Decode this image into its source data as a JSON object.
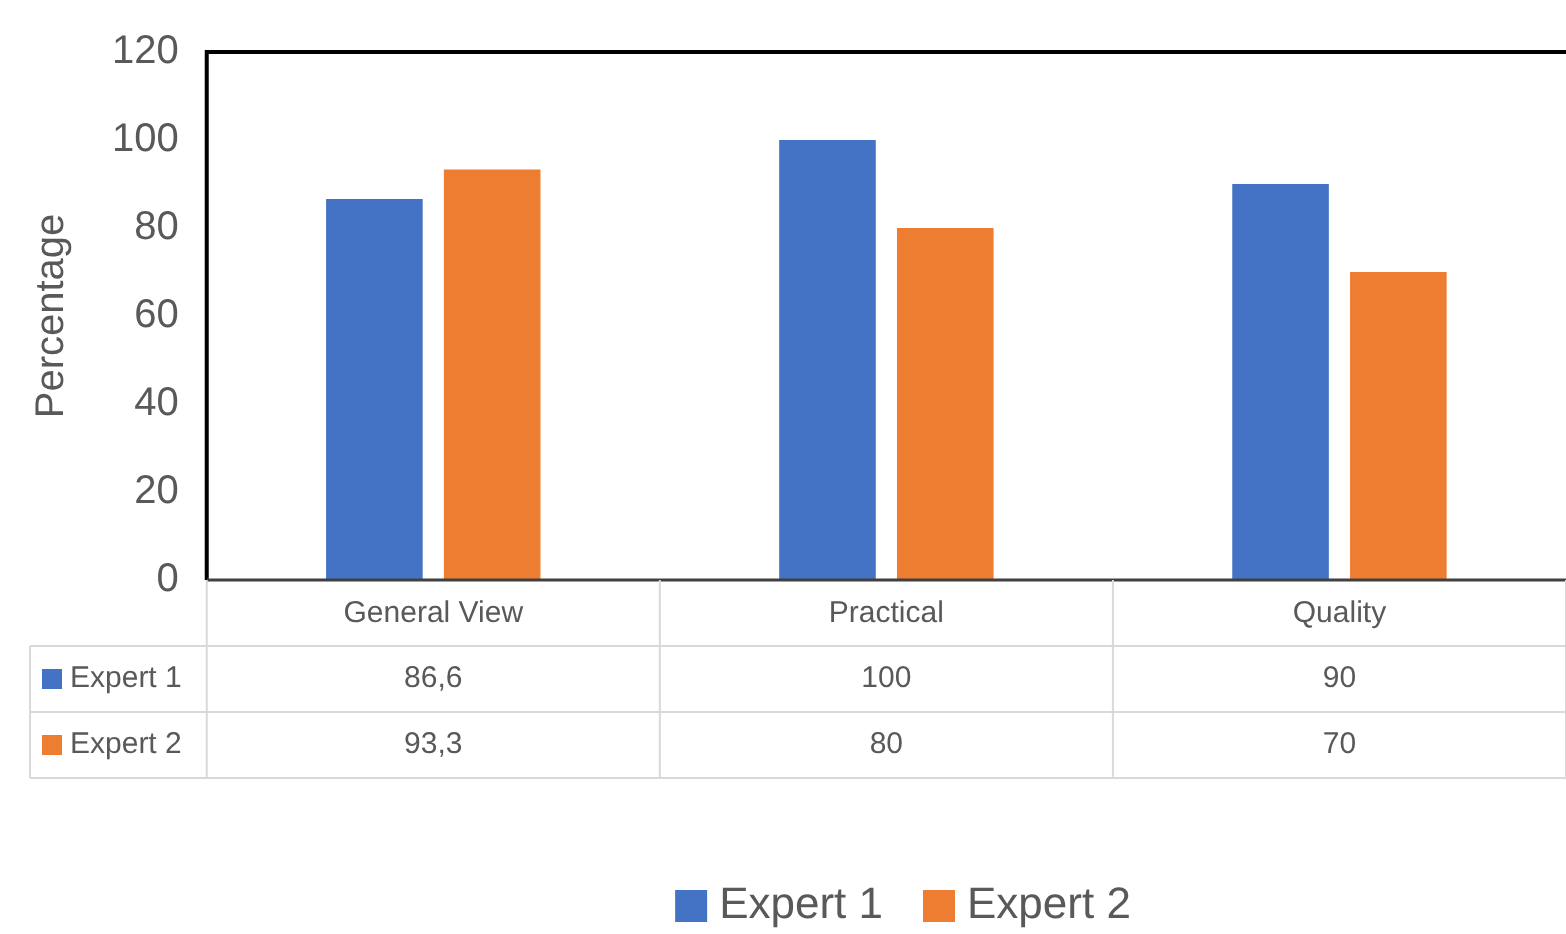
{
  "chart_data": {
    "type": "bar",
    "ylabel": "Percentage",
    "categories": [
      "General View",
      "Practical",
      "Quality"
    ],
    "series": [
      {
        "name": "Expert 1",
        "color": "#4472c4",
        "values": [
          86.6,
          100,
          90
        ],
        "value_labels": [
          "86,6",
          "100",
          "90"
        ]
      },
      {
        "name": "Expert 2",
        "color": "#ed7d31",
        "values": [
          93.3,
          80,
          70
        ],
        "value_labels": [
          "93,3",
          "80",
          "70"
        ]
      }
    ],
    "ylim": [
      0,
      120
    ],
    "yticks": [
      0,
      20,
      40,
      60,
      80,
      100,
      120
    ],
    "grid": false,
    "legend": "bottom"
  }
}
